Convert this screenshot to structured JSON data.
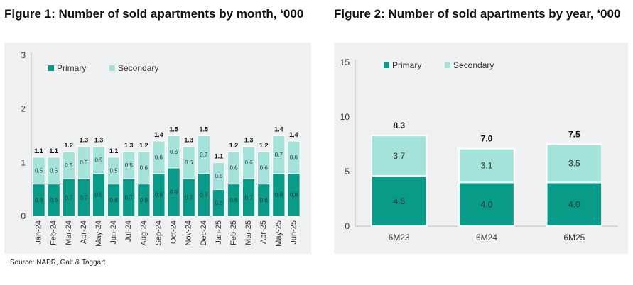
{
  "titles": {
    "fig1": "Figure 1: Number of sold apartments by month, ‘000",
    "fig2": "Figure 2: Number of sold apartments by year, ‘000"
  },
  "source": "Source: NAPR, Galt & Taggart",
  "colors": {
    "primary": "#079b88",
    "secondary": "#a4e3da",
    "panel_bg": "#eef0f1"
  },
  "chart_data": [
    {
      "type": "bar",
      "stacked": true,
      "title": "Figure 1: Number of sold apartments by month, ‘000",
      "categories": [
        "Jan-24",
        "Feb-24",
        "Mar-24",
        "Apr-24",
        "May-24",
        "Jun-24",
        "Jul-24",
        "Aug-24",
        "Sep-24",
        "Oct-24",
        "Nov-24",
        "Dec-24",
        "Jan-25",
        "Feb-25",
        "Mar-25",
        "Apr-25",
        "May-25",
        "Jun-25"
      ],
      "series": [
        {
          "name": "Primary",
          "values": [
            0.6,
            0.6,
            0.7,
            0.7,
            0.8,
            0.6,
            0.7,
            0.6,
            0.8,
            0.9,
            0.7,
            0.8,
            0.5,
            0.6,
            0.7,
            0.6,
            0.8,
            0.8
          ]
        },
        {
          "name": "Secondary",
          "values": [
            0.5,
            0.5,
            0.5,
            0.6,
            0.5,
            0.5,
            0.5,
            0.6,
            0.6,
            0.6,
            0.6,
            0.7,
            0.5,
            0.6,
            0.6,
            0.6,
            0.7,
            0.6
          ]
        }
      ],
      "totals": [
        1.1,
        1.1,
        1.2,
        1.3,
        1.3,
        1.1,
        1.3,
        1.2,
        1.4,
        1.5,
        1.3,
        1.5,
        1.1,
        1.2,
        1.3,
        1.2,
        1.4,
        1.4
      ],
      "ylim": [
        0,
        3
      ],
      "yticks": [
        0,
        1,
        2,
        3
      ],
      "legend": "top-left",
      "grid": false
    },
    {
      "type": "bar",
      "stacked": true,
      "title": "Figure 2: Number of sold apartments by year, ‘000",
      "categories": [
        "6M23",
        "6M24",
        "6M25"
      ],
      "series": [
        {
          "name": "Primary",
          "values": [
            4.6,
            4.0,
            4.0
          ]
        },
        {
          "name": "Secondary",
          "values": [
            3.7,
            3.1,
            3.5
          ]
        }
      ],
      "totals": [
        8.3,
        7.0,
        7.5
      ],
      "ylim": [
        0,
        15
      ],
      "yticks": [
        0,
        5,
        10,
        15
      ],
      "legend": "top-left",
      "grid": false
    }
  ]
}
